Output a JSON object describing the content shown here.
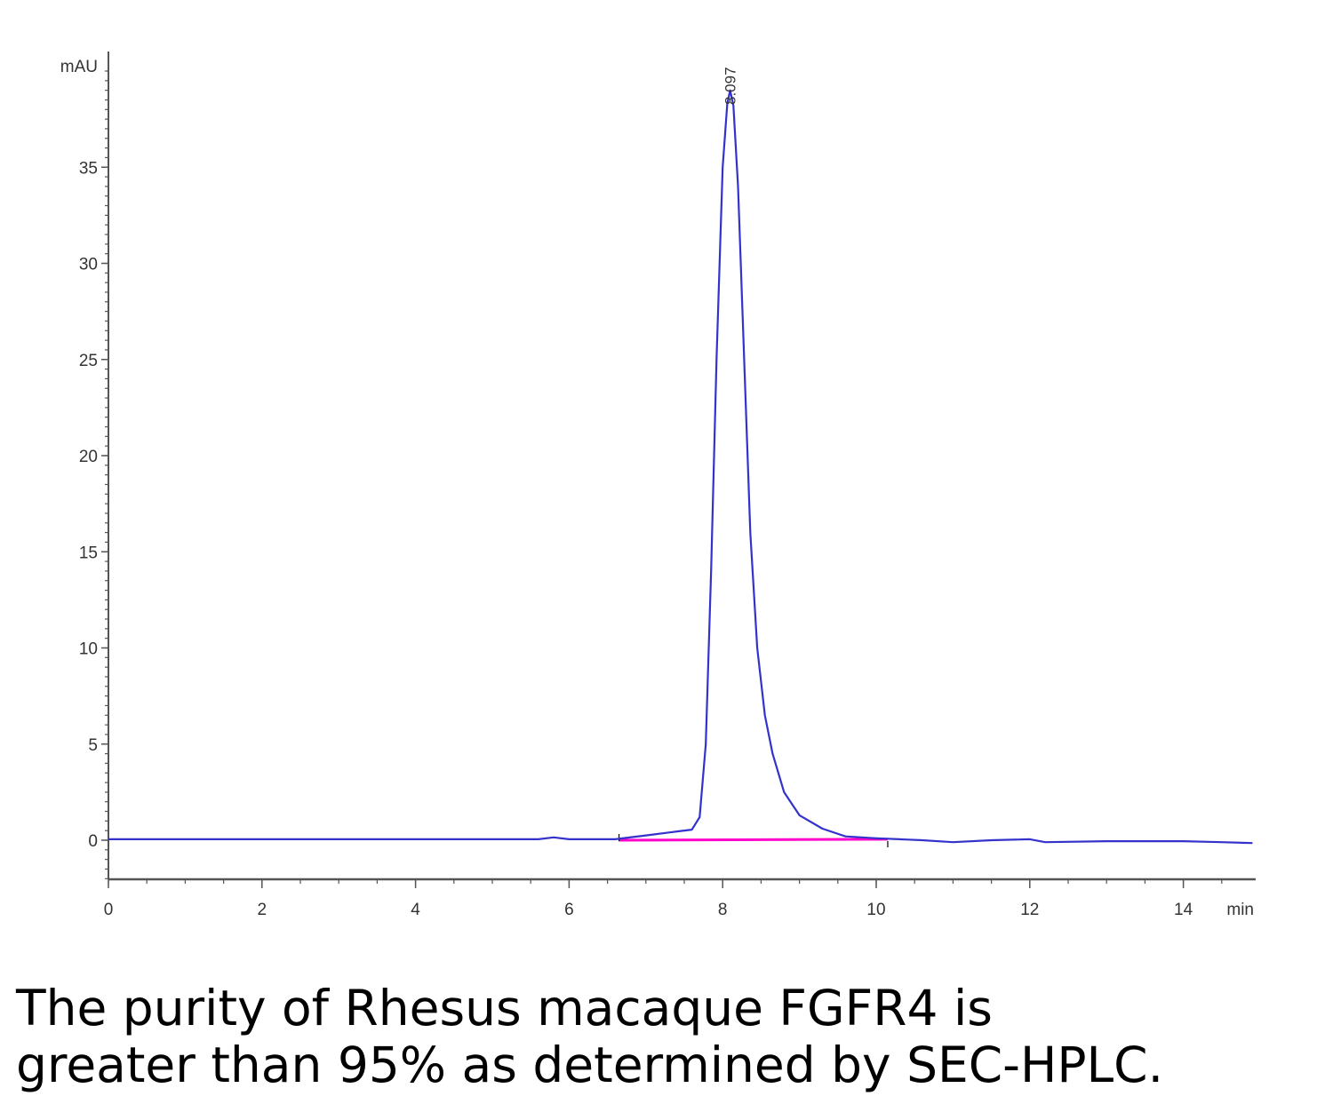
{
  "chart_data": {
    "type": "line",
    "title": "",
    "xlabel": "",
    "ylabel": "",
    "x_unit": "min",
    "y_unit": "mAU",
    "xlim": [
      0,
      14.9
    ],
    "ylim": [
      -2,
      40
    ],
    "x_ticks": [
      0,
      2,
      4,
      6,
      8,
      10,
      12,
      14
    ],
    "y_ticks": [
      0,
      5,
      10,
      15,
      20,
      25,
      30,
      35
    ],
    "grid": false,
    "series": [
      {
        "color": "#3333cc",
        "x": [
          0,
          2,
          4,
          5.6,
          5.8,
          6.0,
          6.6,
          7.0,
          7.3,
          7.6,
          7.7,
          7.78,
          7.85,
          7.92,
          8.0,
          8.06,
          8.097,
          8.14,
          8.2,
          8.28,
          8.36,
          8.45,
          8.55,
          8.65,
          8.8,
          9.0,
          9.3,
          9.6,
          10.0,
          10.3,
          10.6,
          11.0,
          11.5,
          12.0,
          12.2,
          13.0,
          14.0,
          14.5,
          14.9
        ],
        "y": [
          0.05,
          0.05,
          0.05,
          0.05,
          0.15,
          0.05,
          0.05,
          0.25,
          0.4,
          0.55,
          1.2,
          5.0,
          14.0,
          25.0,
          35.0,
          38.3,
          39.0,
          38.2,
          34.0,
          25.0,
          16.0,
          10.0,
          6.5,
          4.5,
          2.5,
          1.3,
          0.6,
          0.2,
          0.1,
          0.05,
          0.0,
          -0.1,
          0.0,
          0.05,
          -0.1,
          -0.05,
          -0.05,
          -0.1,
          -0.15
        ]
      }
    ],
    "baseline": {
      "color": "#ff00cc",
      "x": [
        6.65,
        10.15
      ],
      "y": [
        0.0,
        0.05
      ]
    },
    "peak_label": {
      "text": "8.097",
      "x": 8.097
    }
  },
  "caption": {
    "line1": "The purity of Rhesus macaque FGFR4 is",
    "line2": "greater than 95% as determined by SEC-HPLC."
  }
}
